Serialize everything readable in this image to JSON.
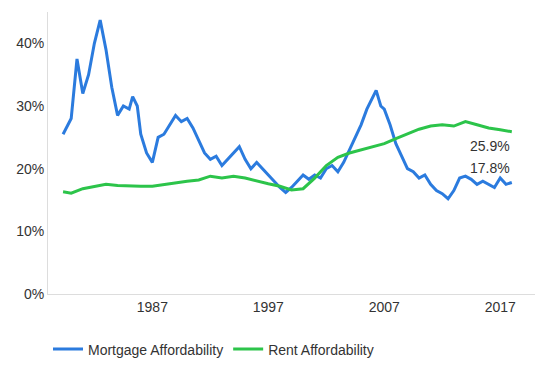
{
  "chart_data": {
    "type": "line",
    "series": [
      {
        "name": "Mortgage Affordability",
        "color": "#2b7bde",
        "x": [
          1979.3,
          1980,
          1980.5,
          1981,
          1981.5,
          1982,
          1982.5,
          1983,
          1983.5,
          1984,
          1984.5,
          1985,
          1985.3,
          1985.7,
          1986,
          1986.5,
          1987,
          1987.5,
          1988,
          1988.5,
          1989,
          1989.5,
          1990,
          1990.5,
          1991,
          1991.5,
          1992,
          1992.5,
          1993,
          1993.5,
          1994,
          1994.5,
          1995,
          1995.5,
          1996,
          1996.5,
          1997,
          1997.5,
          1998,
          1998.5,
          1999,
          1999.5,
          2000,
          2000.5,
          2001,
          2001.5,
          2002,
          2002.5,
          2003,
          2003.5,
          2004,
          2004.5,
          2005,
          2005.5,
          2006,
          2006.3,
          2006.7,
          2007,
          2007.5,
          2008,
          2008.5,
          2009,
          2009.5,
          2010,
          2010.5,
          2011,
          2011.5,
          2012,
          2012.5,
          2013,
          2013.5,
          2014,
          2014.5,
          2015,
          2015.5,
          2016,
          2016.5,
          2017,
          2017.5,
          2018
        ],
        "values": [
          25.5,
          28,
          37.5,
          32,
          35,
          40,
          43.7,
          39,
          33,
          28.5,
          30,
          29.5,
          31.5,
          30,
          25.5,
          22.5,
          21,
          25,
          25.5,
          27,
          28.5,
          27.5,
          28,
          26.5,
          24.5,
          22.5,
          21.5,
          22,
          20.5,
          21.5,
          22.5,
          23.5,
          21.5,
          20,
          21,
          20,
          19,
          18,
          17,
          16.2,
          17,
          18,
          19,
          18.3,
          19,
          18.5,
          20,
          20.5,
          19.5,
          21,
          23,
          25,
          27,
          29.5,
          31.5,
          32.5,
          30,
          29.5,
          27,
          24,
          22,
          20,
          19.5,
          18.5,
          19,
          17.5,
          16.5,
          16,
          15.2,
          16.5,
          18.5,
          18.8,
          18.3,
          17.5,
          18,
          17.5,
          17,
          18.5,
          17.5,
          17.8
        ]
      },
      {
        "name": "Rent Affordability",
        "color": "#2cc44a",
        "x": [
          1979.3,
          1980,
          1981,
          1982,
          1983,
          1984,
          1985,
          1986,
          1987,
          1988,
          1989,
          1990,
          1991,
          1992,
          1993,
          1994,
          1995,
          1996,
          1997,
          1998,
          1999,
          2000,
          2001,
          2002,
          2003,
          2004,
          2005,
          2006,
          2007,
          2008,
          2009,
          2010,
          2011,
          2012,
          2013,
          2014,
          2015,
          2016,
          2017,
          2018
        ],
        "values": [
          16.3,
          16.1,
          16.8,
          17.2,
          17.5,
          17.3,
          17.2,
          17.2,
          17.2,
          17.5,
          17.8,
          18,
          18.2,
          18.8,
          18.5,
          18.8,
          18.5,
          18,
          17.6,
          17.2,
          16.6,
          16.8,
          18.5,
          20.5,
          21.8,
          22.5,
          23,
          23.5,
          24,
          24.8,
          25.5,
          26.3,
          26.8,
          27,
          26.8,
          27.5,
          27,
          26.5,
          26.2,
          25.9
        ]
      }
    ],
    "xlim": [
      1978,
      2020
    ],
    "xticks": [
      1987,
      1997,
      2007,
      2017
    ],
    "ylim": [
      0,
      45
    ],
    "yticks": [
      {
        "value": 0,
        "label": "0%"
      },
      {
        "value": 10,
        "label": "10%"
      },
      {
        "value": 20,
        "label": "20%"
      },
      {
        "value": 30,
        "label": "30%"
      },
      {
        "value": 40,
        "label": "40%"
      }
    ],
    "annotations": [
      {
        "text": "25.9%",
        "x": 2018,
        "y": 25.9
      },
      {
        "text": "17.8%",
        "x": 2018,
        "y": 17.8
      }
    ],
    "grid": false,
    "legend": "bottom"
  }
}
